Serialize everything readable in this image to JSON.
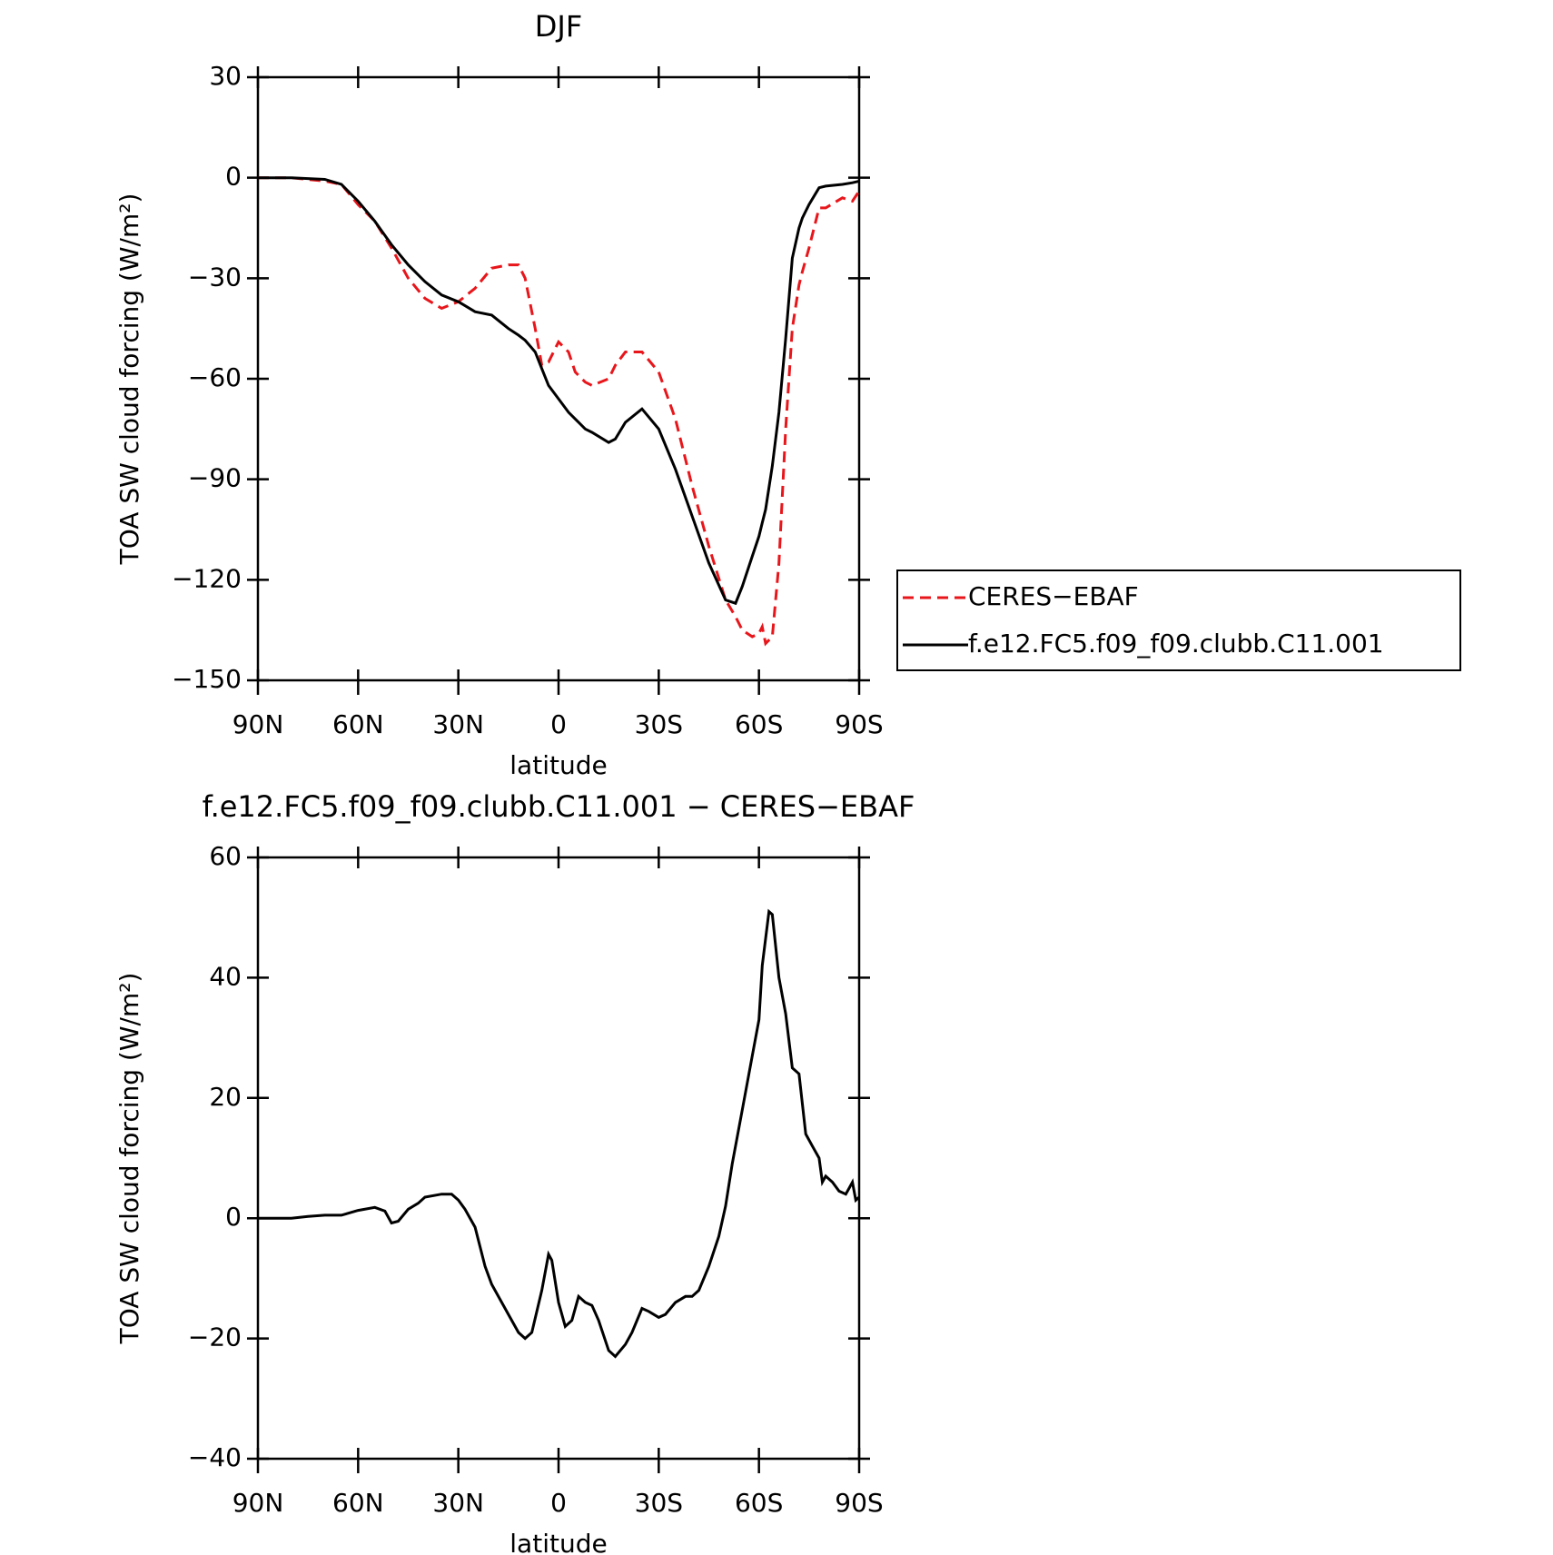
{
  "chart_data": [
    {
      "type": "line",
      "title": "DJF",
      "xlabel": "latitude",
      "ylabel": "TOA SW cloud forcing (W/m²)",
      "xlim": [
        90,
        -90
      ],
      "xticks": [
        {
          "value": 90,
          "label": "90N"
        },
        {
          "value": 60,
          "label": "60N"
        },
        {
          "value": 30,
          "label": "30N"
        },
        0,
        {
          "value": -30,
          "label": "30S"
        },
        {
          "value": -60,
          "label": "60S"
        },
        {
          "value": -90,
          "label": "90S"
        }
      ],
      "ylim": [
        -150,
        30
      ],
      "yticks": [
        {
          "value": -150,
          "label": "−150"
        },
        {
          "value": -120,
          "label": "−120"
        },
        {
          "value": -90,
          "label": "−90"
        },
        {
          "value": -60,
          "label": "−60"
        },
        {
          "value": -30,
          "label": "−30"
        },
        0,
        30
      ],
      "legend": "right",
      "x": [
        90,
        80,
        70,
        65,
        60,
        55,
        50,
        45,
        40,
        35,
        30,
        25,
        20,
        15,
        12,
        10,
        7,
        5,
        3,
        0,
        -3,
        -5,
        -8,
        -10,
        -15,
        -17,
        -20,
        -25,
        -30,
        -35,
        -40,
        -45,
        -50,
        -53,
        -55,
        -58,
        -60,
        -61,
        -62,
        -64,
        -66,
        -68,
        -70,
        -72,
        -73,
        -75,
        -78,
        -80,
        -85,
        -88,
        -90
      ],
      "series": [
        {
          "name": "CERES−EBAF",
          "color": "#e8161b",
          "dash": true,
          "values": [
            0,
            0,
            -1,
            -2,
            -8,
            -13,
            -21,
            -30,
            -36,
            -39,
            -37,
            -33,
            -27,
            -26,
            -26,
            -30,
            -45,
            -56,
            -55,
            -49,
            -52,
            -58,
            -61,
            -62,
            -60,
            -56,
            -52,
            -52,
            -58,
            -72,
            -92,
            -110,
            -126,
            -131,
            -135,
            -137,
            -136,
            -134,
            -139,
            -137,
            -115,
            -75,
            -45,
            -32,
            -28,
            -21,
            -9,
            -9,
            -6,
            -7,
            -4
          ]
        },
        {
          "name": "f.e12.FC5.f09_f09.clubb.C11.001",
          "color": "#000000",
          "dash": false,
          "values": [
            0,
            0,
            -0.5,
            -2,
            -7,
            -13,
            -20,
            -26,
            -31,
            -35,
            -37,
            -40,
            -41,
            -45,
            -47,
            -48.5,
            -52,
            -57,
            -62,
            -66,
            -70,
            -72,
            -75,
            -76,
            -79,
            -78,
            -73,
            -69,
            -75,
            -87,
            -101,
            -115,
            -126,
            -127,
            -122,
            -113,
            -107,
            -103,
            -99,
            -86,
            -70,
            -48,
            -24,
            -15,
            -12,
            -8,
            -3,
            -2.5,
            -2,
            -1.5,
            -1
          ]
        }
      ]
    },
    {
      "type": "line",
      "title": "f.e12.FC5.f09_f09.clubb.C11.001 − CERES−EBAF",
      "xlabel": "latitude",
      "ylabel": "TOA SW cloud forcing (W/m²)",
      "xlim": [
        90,
        -90
      ],
      "xticks": [
        {
          "value": 90,
          "label": "90N"
        },
        {
          "value": 60,
          "label": "60N"
        },
        {
          "value": 30,
          "label": "30N"
        },
        0,
        {
          "value": -30,
          "label": "30S"
        },
        {
          "value": -60,
          "label": "60S"
        },
        {
          "value": -90,
          "label": "90S"
        }
      ],
      "ylim": [
        -40,
        60
      ],
      "yticks": [
        {
          "value": -40,
          "label": "−40"
        },
        {
          "value": -20,
          "label": "−20"
        },
        0,
        20,
        40,
        60
      ],
      "x": [
        90,
        80,
        75,
        70,
        65,
        60,
        55,
        52,
        50,
        48,
        45,
        42,
        40,
        35,
        32,
        30,
        28,
        25,
        22,
        20,
        15,
        12,
        10,
        8,
        5,
        3,
        2,
        0,
        -2,
        -4,
        -6,
        -8,
        -10,
        -12,
        -15,
        -17,
        -20,
        -22,
        -25,
        -27,
        -30,
        -32,
        -35,
        -38,
        -40,
        -42,
        -45,
        -48,
        -50,
        -52,
        -55,
        -58,
        -60,
        -61,
        -63,
        -64,
        -66,
        -68,
        -70,
        -72,
        -74,
        -76,
        -78,
        -79,
        -80,
        -82,
        -84,
        -86,
        -87,
        -88,
        -89,
        -90
      ],
      "series": [
        {
          "color": "#000000",
          "values": [
            0,
            0,
            0.3,
            0.5,
            0.5,
            1.3,
            1.8,
            1.2,
            -0.8,
            -0.5,
            1.5,
            2.5,
            3.5,
            4,
            4,
            3,
            1.5,
            -1.5,
            -8,
            -11,
            -16,
            -19,
            -20,
            -19,
            -12,
            -6,
            -7,
            -14,
            -18,
            -17,
            -13,
            -14,
            -14.5,
            -17,
            -22,
            -23,
            -21,
            -19,
            -15,
            -15.5,
            -16.5,
            -16,
            -14,
            -13,
            -13,
            -12,
            -8,
            -3,
            2,
            9,
            18,
            27,
            33,
            42,
            51,
            50.5,
            40,
            34,
            25,
            24,
            14,
            12,
            10,
            6,
            7,
            6,
            4.5,
            4,
            5,
            6,
            3,
            3.5
          ]
        }
      ]
    }
  ]
}
